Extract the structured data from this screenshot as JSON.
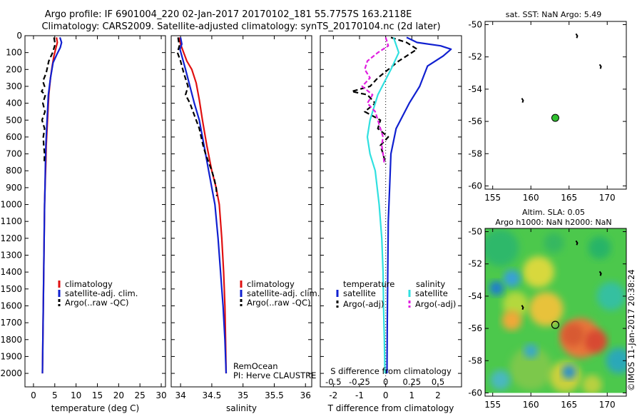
{
  "header": {
    "title_line1": "Argo profile: IF 6901004_220 02-Jan-2017 20170102_181 55.7757S 163.2118E",
    "title_line2": "Climatology: CARS2009. Satellite-adjusted climatology: synTS_20170104.nc (2d later)"
  },
  "colors": {
    "climatology": "#e01010",
    "satellite": "#1020d0",
    "argo": "#000000",
    "sat_salinity": "#30e0e0",
    "argo_salinity": "#e020e0",
    "float_marker": "#30c030"
  },
  "chart_data": [
    {
      "type": "line",
      "id": "temperature",
      "xlabel": "temperature (deg C)",
      "xlim": [
        -2,
        31
      ],
      "xticks": [
        0,
        5,
        10,
        15,
        20,
        25,
        30
      ],
      "ylim": [
        2080,
        0
      ],
      "yticks": [
        0,
        100,
        200,
        300,
        400,
        500,
        600,
        700,
        800,
        900,
        1000,
        1100,
        1200,
        1300,
        1400,
        1500,
        1600,
        1700,
        1800,
        1900,
        2000
      ],
      "legend": [
        "climatology",
        "satellite-adj. clim.",
        "Argo(..raw -QC)"
      ],
      "series": [
        {
          "name": "climatology",
          "color": "#e01010",
          "dash": "",
          "points": [
            [
              5.4,
              10
            ],
            [
              5.6,
              40
            ],
            [
              5.2,
              80
            ],
            [
              4.8,
              120
            ],
            [
              4.4,
              180
            ],
            [
              4.0,
              250
            ],
            [
              3.6,
              350
            ],
            [
              3.4,
              450
            ],
            [
              3.2,
              550
            ],
            [
              3.0,
              650
            ],
            [
              2.9,
              750
            ],
            [
              2.7,
              900
            ],
            [
              2.6,
              1000
            ],
            [
              2.5,
              1200
            ],
            [
              2.4,
              1400
            ],
            [
              2.3,
              1600
            ],
            [
              2.2,
              1800
            ],
            [
              2.1,
              2000
            ]
          ]
        },
        {
          "name": "satellite-adj. clim.",
          "color": "#1020d0",
          "dash": "",
          "points": [
            [
              6.2,
              10
            ],
            [
              6.6,
              40
            ],
            [
              6.3,
              70
            ],
            [
              5.5,
              110
            ],
            [
              4.6,
              160
            ],
            [
              4.0,
              250
            ],
            [
              3.5,
              350
            ],
            [
              3.3,
              450
            ],
            [
              3.1,
              550
            ],
            [
              2.9,
              650
            ],
            [
              2.8,
              750
            ],
            [
              2.7,
              900
            ],
            [
              2.6,
              1000
            ],
            [
              2.5,
              1200
            ],
            [
              2.4,
              1400
            ],
            [
              2.3,
              1600
            ],
            [
              2.2,
              1800
            ],
            [
              2.1,
              2000
            ]
          ]
        },
        {
          "name": "Argo(..raw -QC)",
          "color": "#000000",
          "dash": "7,4",
          "points": [
            [
              4.8,
              10
            ],
            [
              5.1,
              50
            ],
            [
              4.5,
              100
            ],
            [
              3.6,
              150
            ],
            [
              3.0,
              220
            ],
            [
              2.2,
              270
            ],
            [
              2.6,
              300
            ],
            [
              1.9,
              330
            ],
            [
              2.8,
              350
            ],
            [
              2.2,
              400
            ],
            [
              2.7,
              450
            ],
            [
              2.0,
              500
            ],
            [
              2.6,
              550
            ],
            [
              2.3,
              600
            ],
            [
              2.4,
              650
            ],
            [
              2.6,
              700
            ],
            [
              2.5,
              760
            ]
          ]
        }
      ]
    },
    {
      "type": "line",
      "id": "salinity",
      "xlabel": "salinity",
      "xlim": [
        33.85,
        36.1
      ],
      "xticks": [
        34,
        34.5,
        35,
        35.5,
        36
      ],
      "ylim": [
        2080,
        0
      ],
      "legend": [
        "climatology",
        "satellite-adj. clim.",
        "Argo(..raw -QC)"
      ],
      "annotation": [
        "RemOcean",
        "PI: Herve CLAUSTRE"
      ],
      "series": [
        {
          "name": "climatology",
          "color": "#e01010",
          "dash": "",
          "points": [
            [
              33.98,
              10
            ],
            [
              34.0,
              50
            ],
            [
              34.05,
              100
            ],
            [
              34.1,
              150
            ],
            [
              34.18,
              200
            ],
            [
              34.25,
              280
            ],
            [
              34.3,
              380
            ],
            [
              34.35,
              500
            ],
            [
              34.42,
              650
            ],
            [
              34.5,
              800
            ],
            [
              34.57,
              900
            ],
            [
              34.62,
              1000
            ],
            [
              34.66,
              1200
            ],
            [
              34.69,
              1400
            ],
            [
              34.71,
              1600
            ],
            [
              34.72,
              1800
            ],
            [
              34.73,
              2000
            ]
          ]
        },
        {
          "name": "satellite-adj. clim.",
          "color": "#1020d0",
          "dash": "",
          "points": [
            [
              34.0,
              10
            ],
            [
              34.02,
              50
            ],
            [
              33.99,
              80
            ],
            [
              34.02,
              120
            ],
            [
              34.08,
              200
            ],
            [
              34.15,
              300
            ],
            [
              34.22,
              400
            ],
            [
              34.3,
              500
            ],
            [
              34.35,
              600
            ],
            [
              34.4,
              700
            ],
            [
              34.45,
              800
            ],
            [
              34.5,
              900
            ],
            [
              34.55,
              1000
            ],
            [
              34.6,
              1200
            ],
            [
              34.64,
              1400
            ],
            [
              34.66,
              1500
            ],
            [
              34.68,
              1600
            ],
            [
              34.71,
              1800
            ],
            [
              34.73,
              2000
            ]
          ]
        },
        {
          "name": "Argo(..raw -QC)",
          "color": "#000000",
          "dash": "7,4",
          "points": [
            [
              33.96,
              10
            ],
            [
              33.98,
              60
            ],
            [
              33.95,
              100
            ],
            [
              34.0,
              150
            ],
            [
              34.05,
              220
            ],
            [
              34.12,
              300
            ],
            [
              34.08,
              350
            ],
            [
              34.15,
              400
            ],
            [
              34.2,
              450
            ],
            [
              34.25,
              500
            ],
            [
              34.3,
              550
            ],
            [
              34.33,
              600
            ],
            [
              34.36,
              650
            ],
            [
              34.4,
              700
            ],
            [
              34.45,
              750
            ],
            [
              34.5,
              800
            ],
            [
              34.54,
              850
            ],
            [
              34.57,
              900
            ],
            [
              34.58,
              950
            ]
          ]
        }
      ]
    },
    {
      "type": "line",
      "id": "difference",
      "xlabel": "T difference from climatology",
      "xlabel_top": "S difference from climatology",
      "xlim": [
        -2.5,
        2.9
      ],
      "xticks": [
        -2,
        -1,
        0,
        1,
        2
      ],
      "sticks": [
        "-0.5",
        "-0.25",
        "0",
        "0.25",
        "0.5"
      ],
      "ylim": [
        2080,
        0
      ],
      "legend_titles": [
        "temperature",
        "salinity"
      ],
      "legend": [
        "satellite",
        "Argo(-adj)",
        "satellite",
        "Argo(-adj)"
      ],
      "series": [
        {
          "name": "temperature satellite",
          "color": "#1020d0",
          "dash": "",
          "points": [
            [
              0.8,
              10
            ],
            [
              1.2,
              40
            ],
            [
              2.1,
              60
            ],
            [
              2.5,
              80
            ],
            [
              2.2,
              120
            ],
            [
              1.6,
              180
            ],
            [
              1.3,
              300
            ],
            [
              0.9,
              400
            ],
            [
              0.4,
              550
            ],
            [
              0.2,
              700
            ],
            [
              0.15,
              900
            ],
            [
              0.1,
              1100
            ],
            [
              0.08,
              1400
            ],
            [
              0.06,
              1700
            ],
            [
              0.05,
              2000
            ]
          ]
        },
        {
          "name": "temperature Argo(-adj)",
          "color": "#000000",
          "dash": "7,4",
          "points": [
            [
              0.2,
              10
            ],
            [
              0.8,
              40
            ],
            [
              1.2,
              80
            ],
            [
              0.5,
              150
            ],
            [
              -0.3,
              250
            ],
            [
              -0.6,
              300
            ],
            [
              -1.3,
              330
            ],
            [
              -0.7,
              350
            ],
            [
              -0.4,
              400
            ],
            [
              -0.8,
              450
            ],
            [
              -0.2,
              500
            ],
            [
              -0.3,
              550
            ],
            [
              0.1,
              600
            ],
            [
              -0.2,
              650
            ],
            [
              -0.1,
              700
            ],
            [
              0.0,
              760
            ]
          ]
        },
        {
          "name": "salinity satellite",
          "color": "#30e0e0",
          "dash": "",
          "points": [
            [
              0.3,
              10
            ],
            [
              0.5,
              100
            ],
            [
              0.2,
              200
            ],
            [
              -0.3,
              350
            ],
            [
              -0.6,
              500
            ],
            [
              -0.7,
              600
            ],
            [
              -0.6,
              700
            ],
            [
              -0.4,
              800
            ],
            [
              -0.25,
              1000
            ],
            [
              -0.15,
              1200
            ],
            [
              -0.1,
              1400
            ],
            [
              -0.08,
              1600
            ],
            [
              -0.05,
              1800
            ],
            [
              -0.03,
              2000
            ]
          ]
        },
        {
          "name": "salinity Argo(-adj)",
          "color": "#e020e0",
          "dash": "6,3",
          "points": [
            [
              0.0,
              10
            ],
            [
              0.1,
              60
            ],
            [
              -0.3,
              100
            ],
            [
              -0.7,
              150
            ],
            [
              -0.8,
              200
            ],
            [
              -0.6,
              250
            ],
            [
              -0.9,
              300
            ],
            [
              -0.5,
              350
            ],
            [
              -0.7,
              400
            ],
            [
              -0.4,
              450
            ],
            [
              -0.3,
              500
            ],
            [
              -0.2,
              550
            ],
            [
              -0.1,
              600
            ],
            [
              -0.15,
              650
            ],
            [
              -0.1,
              700
            ],
            [
              -0.05,
              760
            ]
          ]
        }
      ]
    },
    {
      "type": "scatter",
      "id": "sst-map",
      "title": "sat. SST: NaN Argo: 5.49",
      "xlim": [
        154,
        172.5
      ],
      "xticks": [
        155,
        160,
        165,
        170
      ],
      "ylim": [
        -60.2,
        -49.8
      ],
      "yticks": [
        -50,
        -52,
        -54,
        -56,
        -58,
        -60
      ],
      "float": {
        "lon": 163.2,
        "lat": -55.78
      },
      "islands": [
        [
          166.0,
          -50.7
        ],
        [
          169.1,
          -52.6
        ],
        [
          158.9,
          -54.7
        ]
      ]
    },
    {
      "type": "heatmap",
      "id": "sla-map",
      "title_line1": "Altim. SLA: 0.05",
      "title_line2": "Argo h1000: NaN h2000: NaN",
      "xlim": [
        154,
        172.5
      ],
      "xticks": [
        155,
        160,
        165,
        170
      ],
      "ylim": [
        -60.2,
        -49.8
      ],
      "yticks": [
        -50,
        -52,
        -54,
        -56,
        -58,
        -60
      ],
      "float": {
        "lon": 163.2,
        "lat": -55.78
      }
    }
  ],
  "footer": {
    "credit": "©IMOS 11-Jan-2017 20:38:24"
  }
}
